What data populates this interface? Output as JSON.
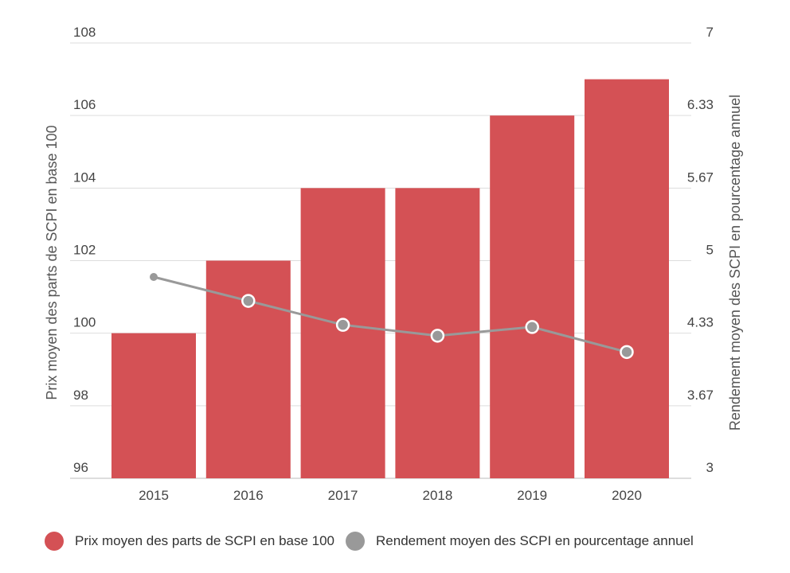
{
  "chart_data": {
    "type": "bar",
    "categories": [
      "2015",
      "2016",
      "2017",
      "2018",
      "2019",
      "2020"
    ],
    "series": [
      {
        "name": "Prix moyen des parts de SCPI en base 100",
        "type": "bar",
        "axis": "left",
        "color": "#d45155",
        "values": [
          100,
          102,
          104,
          104,
          106,
          107
        ]
      },
      {
        "name": "Rendement moyen des SCPI en pourcentage annuel",
        "type": "line",
        "axis": "right",
        "color": "#999999",
        "values": [
          4.85,
          4.63,
          4.41,
          4.31,
          4.39,
          4.16
        ]
      }
    ],
    "y_left": {
      "label": "Prix moyen des parts de SCPI en base 100",
      "min": 96,
      "max": 108,
      "ticks": [
        "96",
        "98",
        "100",
        "102",
        "104",
        "106",
        "108"
      ]
    },
    "y_right": {
      "label": "Rendement moyen des SCPI en pourcentage annuel",
      "min": 3,
      "max": 7,
      "ticks": [
        "3",
        "3.67",
        "4.33",
        "5",
        "5.67",
        "6.33",
        "7"
      ]
    },
    "grid": true,
    "legend_position": "bottom-left"
  }
}
